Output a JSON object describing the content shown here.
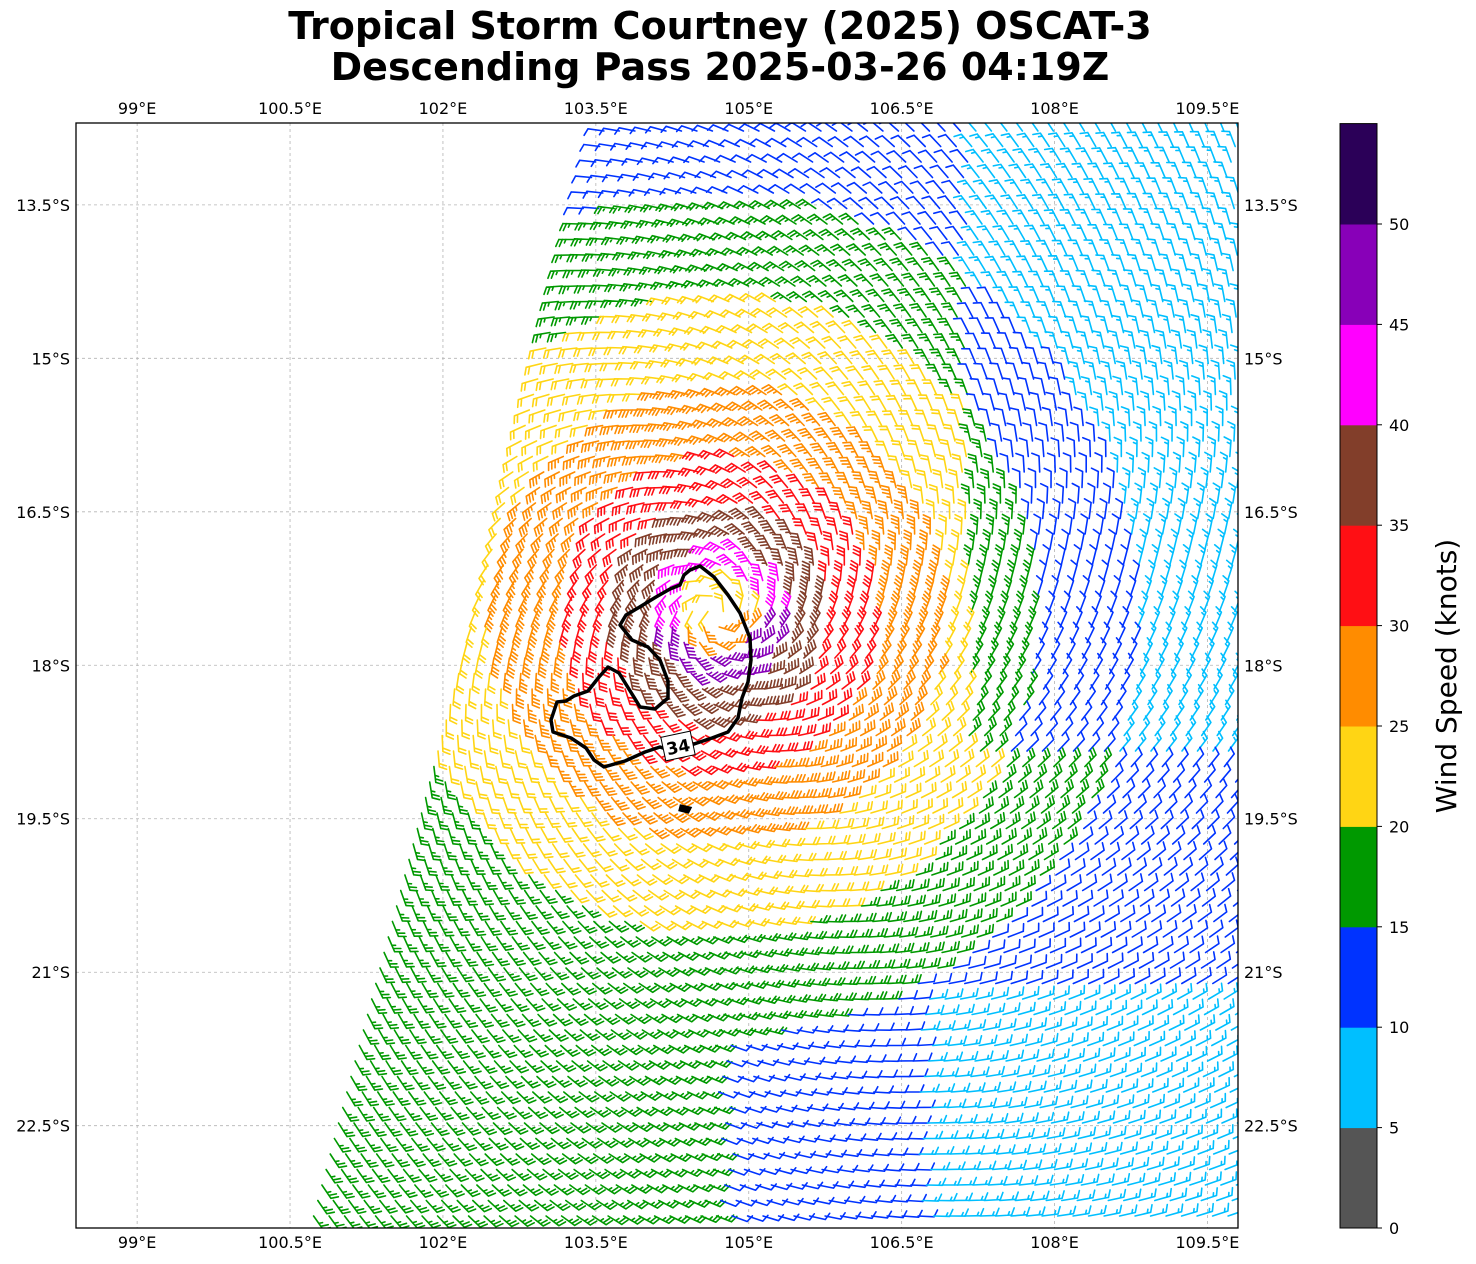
{
  "title": {
    "line1": "Tropical Storm Courtney (2025) OSCAT-3",
    "line2": "Descending Pass 2025-03-26 04:19Z"
  },
  "map": {
    "lon_range": [
      98.4,
      109.8
    ],
    "lat_range": [
      -23.5,
      -12.7
    ],
    "lon_ticks": [
      {
        "value": 99,
        "label": "99°E"
      },
      {
        "value": 100.5,
        "label": "100.5°E"
      },
      {
        "value": 102,
        "label": "102°E"
      },
      {
        "value": 103.5,
        "label": "103.5°E"
      },
      {
        "value": 105,
        "label": "105°E"
      },
      {
        "value": 106.5,
        "label": "106.5°E"
      },
      {
        "value": 108,
        "label": "108°E"
      },
      {
        "value": 109.5,
        "label": "109.5°E"
      }
    ],
    "lat_ticks": [
      {
        "value": -13.5,
        "label": "13.5°S"
      },
      {
        "value": -15,
        "label": "15°S"
      },
      {
        "value": -16.5,
        "label": "16.5°S"
      },
      {
        "value": -18,
        "label": "18°S"
      },
      {
        "value": -19.5,
        "label": "19.5°S"
      },
      {
        "value": -21,
        "label": "21°S"
      },
      {
        "value": -22.5,
        "label": "22.5°S"
      }
    ],
    "gridlines": true,
    "storm_center": {
      "lon": 104.7,
      "lat": -17.5
    },
    "swath_left_edge": {
      "lon_at_north": 103.6,
      "lat_north": -12.7,
      "lon_at_south": 100.7,
      "lat_south": -23.5
    },
    "contour_label": "34"
  },
  "colorbar": {
    "label": "Wind Speed (knots)",
    "ticks": [
      "0",
      "5",
      "10",
      "15",
      "20",
      "25",
      "30",
      "35",
      "40",
      "45",
      "50"
    ],
    "bins": [
      {
        "from": 0,
        "to": 5,
        "color": "#555555"
      },
      {
        "from": 5,
        "to": 10,
        "color": "#00bfff"
      },
      {
        "from": 10,
        "to": 15,
        "color": "#0033ff"
      },
      {
        "from": 15,
        "to": 20,
        "color": "#009900"
      },
      {
        "from": 20,
        "to": 25,
        "color": "#ffd514"
      },
      {
        "from": 25,
        "to": 30,
        "color": "#ff8c00"
      },
      {
        "from": 30,
        "to": 35,
        "color": "#ff0f14"
      },
      {
        "from": 35,
        "to": 40,
        "color": "#823e2a"
      },
      {
        "from": 40,
        "to": 45,
        "color": "#ff00ff"
      },
      {
        "from": 45,
        "to": 50,
        "color": "#8800b8"
      },
      {
        "from": 50,
        "to": 55,
        "color": "#2b0058"
      }
    ]
  }
}
